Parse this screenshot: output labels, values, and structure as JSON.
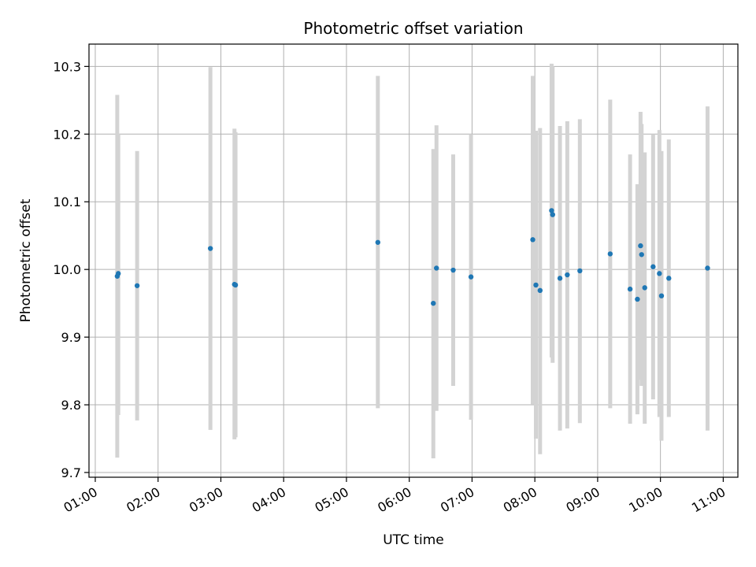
{
  "chart_data": {
    "type": "scatter",
    "title": "Photometric offset variation",
    "xlabel": "UTC time",
    "ylabel": "Photometric offset",
    "xlim": [
      "00:54",
      "11:14"
    ],
    "ylim": [
      9.693,
      10.333
    ],
    "grid": true,
    "x_ticks": [
      "01:00",
      "02:00",
      "03:00",
      "04:00",
      "05:00",
      "06:00",
      "07:00",
      "08:00",
      "09:00",
      "10:00",
      "11:00"
    ],
    "y_ticks": [
      9.7,
      9.8,
      9.9,
      10.0,
      10.1,
      10.2,
      10.3
    ],
    "y_tick_labels": [
      "9.7",
      "9.8",
      "9.9",
      "10.0",
      "10.1",
      "10.2",
      "10.3"
    ],
    "colors": {
      "point": "#1f77b4",
      "errorbar": "#d3d3d3",
      "grid": "#b0b0b0"
    },
    "series": [
      {
        "points": [
          {
            "t": "01:21",
            "y": 9.99,
            "ylo": 9.722,
            "yhi": 10.258
          },
          {
            "t": "01:22",
            "y": 9.994,
            "ylo": 9.785,
            "yhi": 10.2
          },
          {
            "t": "01:40",
            "y": 9.976,
            "ylo": 9.777,
            "yhi": 10.175
          },
          {
            "t": "02:50",
            "y": 10.031,
            "ylo": 9.763,
            "yhi": 10.299
          },
          {
            "t": "03:13",
            "y": 9.978,
            "ylo": 9.749,
            "yhi": 10.208
          },
          {
            "t": "03:14",
            "y": 9.977,
            "ylo": 9.752,
            "yhi": 10.203
          },
          {
            "t": "05:30",
            "y": 10.04,
            "ylo": 9.795,
            "yhi": 10.286
          },
          {
            "t": "06:23",
            "y": 9.95,
            "ylo": 9.721,
            "yhi": 10.178
          },
          {
            "t": "06:26",
            "y": 10.002,
            "ylo": 9.791,
            "yhi": 10.213
          },
          {
            "t": "06:42",
            "y": 9.999,
            "ylo": 9.828,
            "yhi": 10.17
          },
          {
            "t": "06:59",
            "y": 9.989,
            "ylo": 9.778,
            "yhi": 10.2
          },
          {
            "t": "07:58",
            "y": 10.044,
            "ylo": 9.801,
            "yhi": 10.286
          },
          {
            "t": "08:01",
            "y": 9.977,
            "ylo": 9.75,
            "yhi": 10.205
          },
          {
            "t": "08:05",
            "y": 9.969,
            "ylo": 9.727,
            "yhi": 10.209
          },
          {
            "t": "08:16",
            "y": 10.087,
            "ylo": 9.87,
            "yhi": 10.304
          },
          {
            "t": "08:17",
            "y": 10.081,
            "ylo": 9.862,
            "yhi": 10.3
          },
          {
            "t": "08:24",
            "y": 9.987,
            "ylo": 9.762,
            "yhi": 10.212
          },
          {
            "t": "08:31",
            "y": 9.992,
            "ylo": 9.765,
            "yhi": 10.219
          },
          {
            "t": "08:43",
            "y": 9.998,
            "ylo": 9.773,
            "yhi": 10.222
          },
          {
            "t": "09:12",
            "y": 10.023,
            "ylo": 9.795,
            "yhi": 10.251
          },
          {
            "t": "09:31",
            "y": 9.971,
            "ylo": 9.772,
            "yhi": 10.17
          },
          {
            "t": "09:38",
            "y": 9.956,
            "ylo": 9.786,
            "yhi": 10.126
          },
          {
            "t": "09:41",
            "y": 10.035,
            "ylo": 9.837,
            "yhi": 10.233
          },
          {
            "t": "09:42",
            "y": 10.022,
            "ylo": 9.828,
            "yhi": 10.215
          },
          {
            "t": "09:45",
            "y": 9.973,
            "ylo": 9.772,
            "yhi": 10.173
          },
          {
            "t": "09:53",
            "y": 10.004,
            "ylo": 9.808,
            "yhi": 10.2
          },
          {
            "t": "09:59",
            "y": 9.994,
            "ylo": 9.782,
            "yhi": 10.206
          },
          {
            "t": "10:01",
            "y": 9.961,
            "ylo": 9.747,
            "yhi": 10.175
          },
          {
            "t": "10:08",
            "y": 9.987,
            "ylo": 9.782,
            "yhi": 10.192
          },
          {
            "t": "10:45",
            "y": 10.002,
            "ylo": 9.762,
            "yhi": 10.241
          }
        ]
      }
    ]
  }
}
